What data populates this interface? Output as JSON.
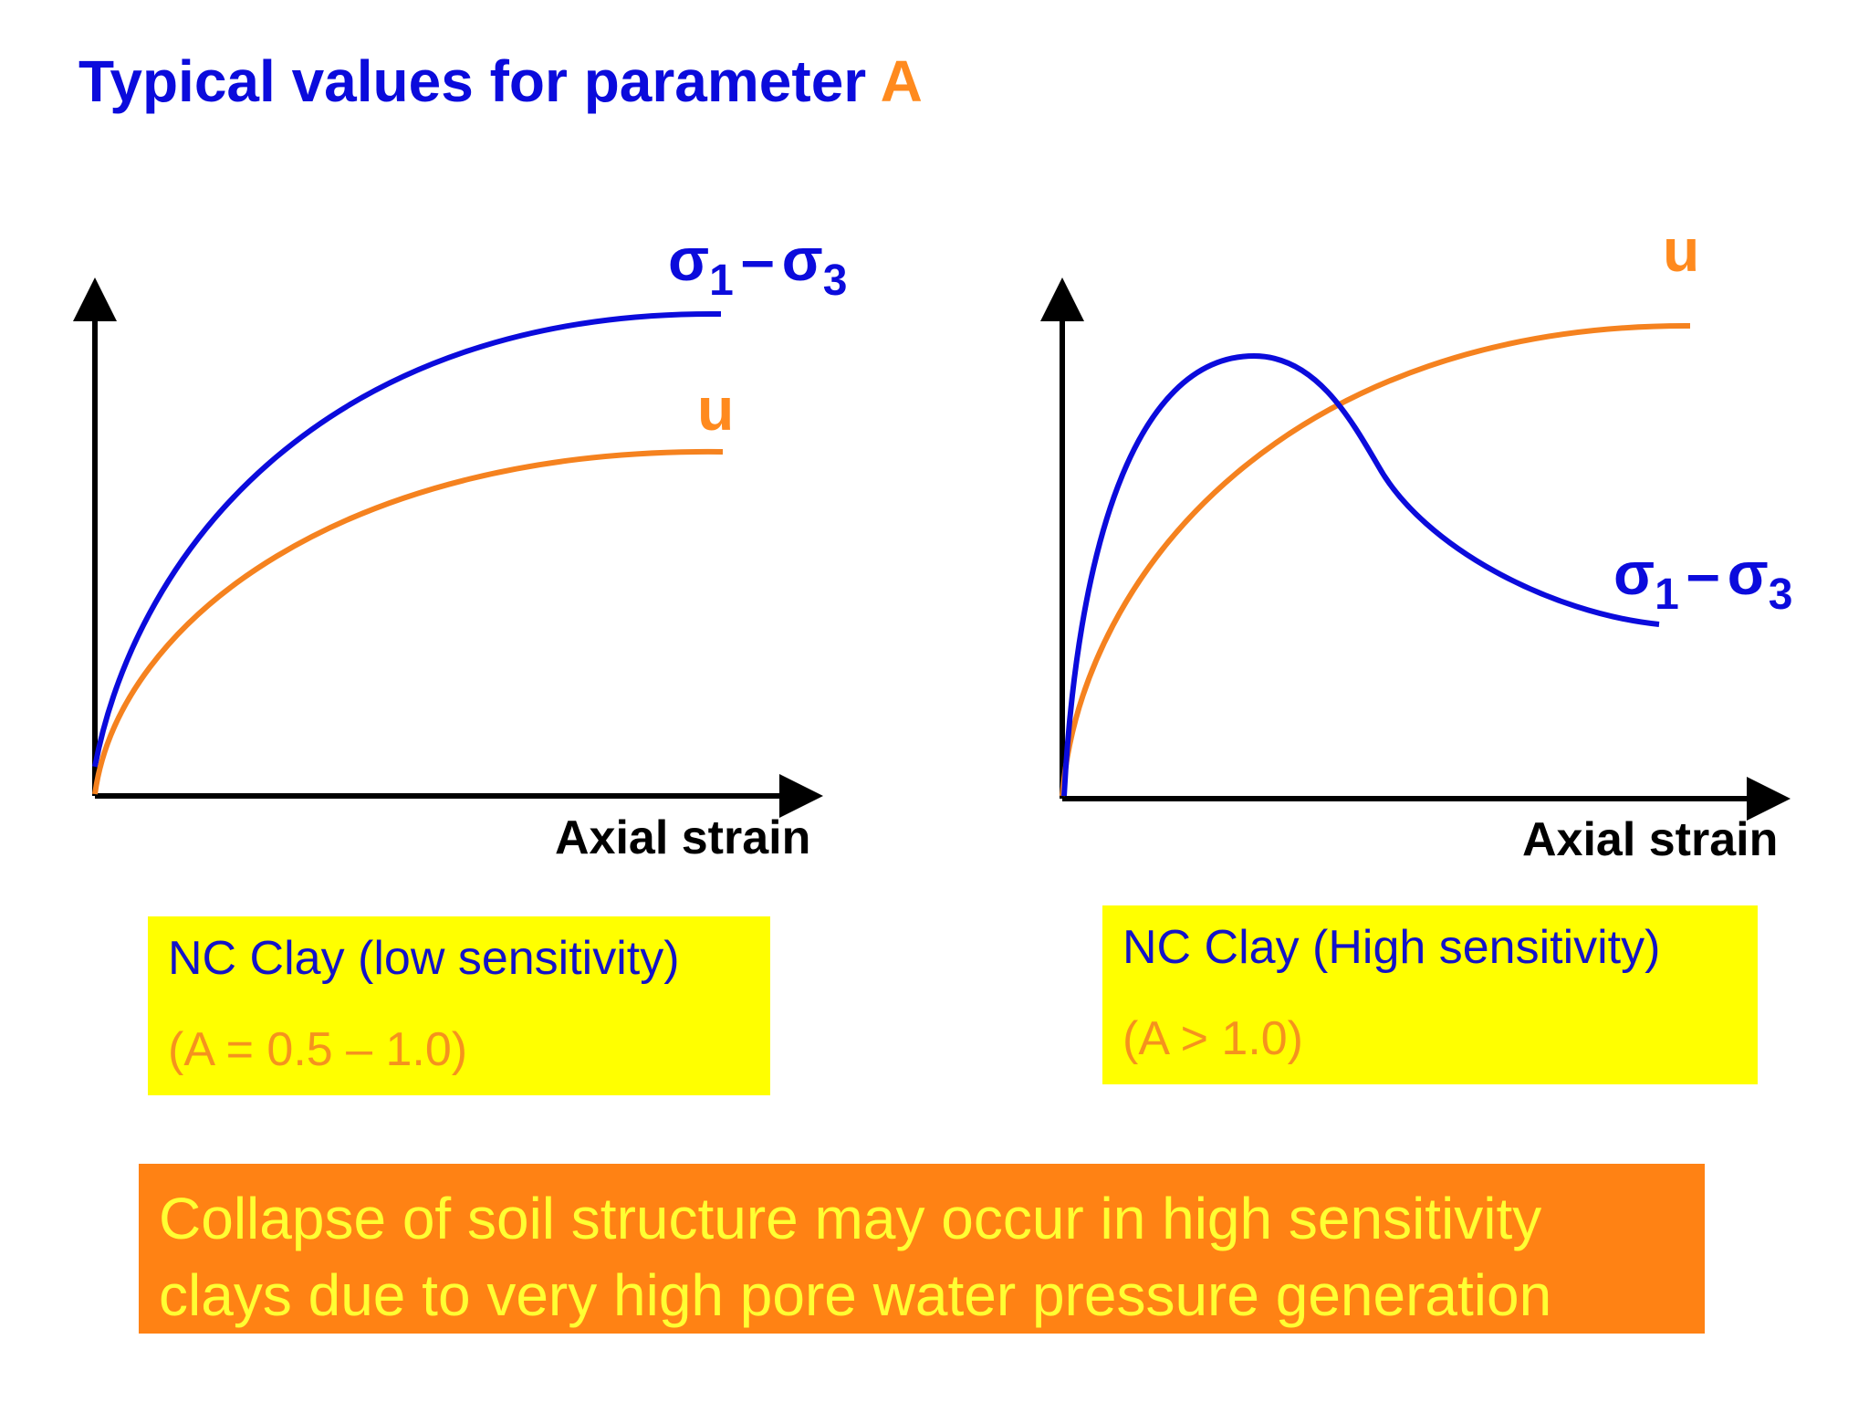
{
  "title": {
    "main": "Typical values for parameter ",
    "accent": "A"
  },
  "colors": {
    "blue": "#0b0bdc",
    "orange": "#ff8a1e",
    "highlight": "#ffff00",
    "note_bg": "#ff8214",
    "note_text": "#ffff33"
  },
  "left_plot": {
    "x_axis_label": "Axial strain",
    "stress_label": {
      "sigma1": "σ",
      "sub1": "1",
      "dash": "–",
      "sigma3": "σ",
      "sub3": "3"
    },
    "pore_label": "u",
    "box": {
      "line1": "NC Clay (low sensitivity)",
      "line2": "(A = 0.5 – 1.0)"
    }
  },
  "right_plot": {
    "x_axis_label": "Axial strain",
    "stress_label": {
      "sigma1": "σ",
      "sub1": "1",
      "dash": "–",
      "sigma3": "σ",
      "sub3": "3"
    },
    "pore_label": "u",
    "box": {
      "line1": "NC Clay (High sensitivity)",
      "line2": "(A > 1.0)"
    }
  },
  "note": {
    "line1": "Collapse of soil structure may occur in high sensitivity",
    "line2": "clays due to very high pore water pressure generation"
  }
}
